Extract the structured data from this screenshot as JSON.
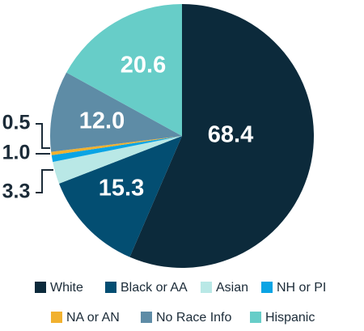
{
  "chart_data": {
    "type": "pie",
    "title": "",
    "slices": [
      {
        "label": "White",
        "value": 68.4,
        "color": "#0c2a3b"
      },
      {
        "label": "Black or AA",
        "value": 15.3,
        "color": "#034e72"
      },
      {
        "label": "Asian",
        "value": 3.3,
        "color": "#b9e8e6"
      },
      {
        "label": "NH or PI",
        "value": 1.0,
        "color": "#0aa4e4"
      },
      {
        "label": "NA or AN",
        "value": 0.5,
        "color": "#f1b12f"
      },
      {
        "label": "No Race Info",
        "value": 12.0,
        "color": "#5e8ca6"
      },
      {
        "label": "Hispanic",
        "value": 20.6,
        "color": "#67cdc8"
      }
    ],
    "data_labels": [
      "68.4",
      "15.3",
      "3.3",
      "1.0",
      "0.5",
      "12.0",
      "20.6"
    ],
    "legend_position": "bottom",
    "start_angle_deg": 0,
    "direction": "clockwise"
  }
}
